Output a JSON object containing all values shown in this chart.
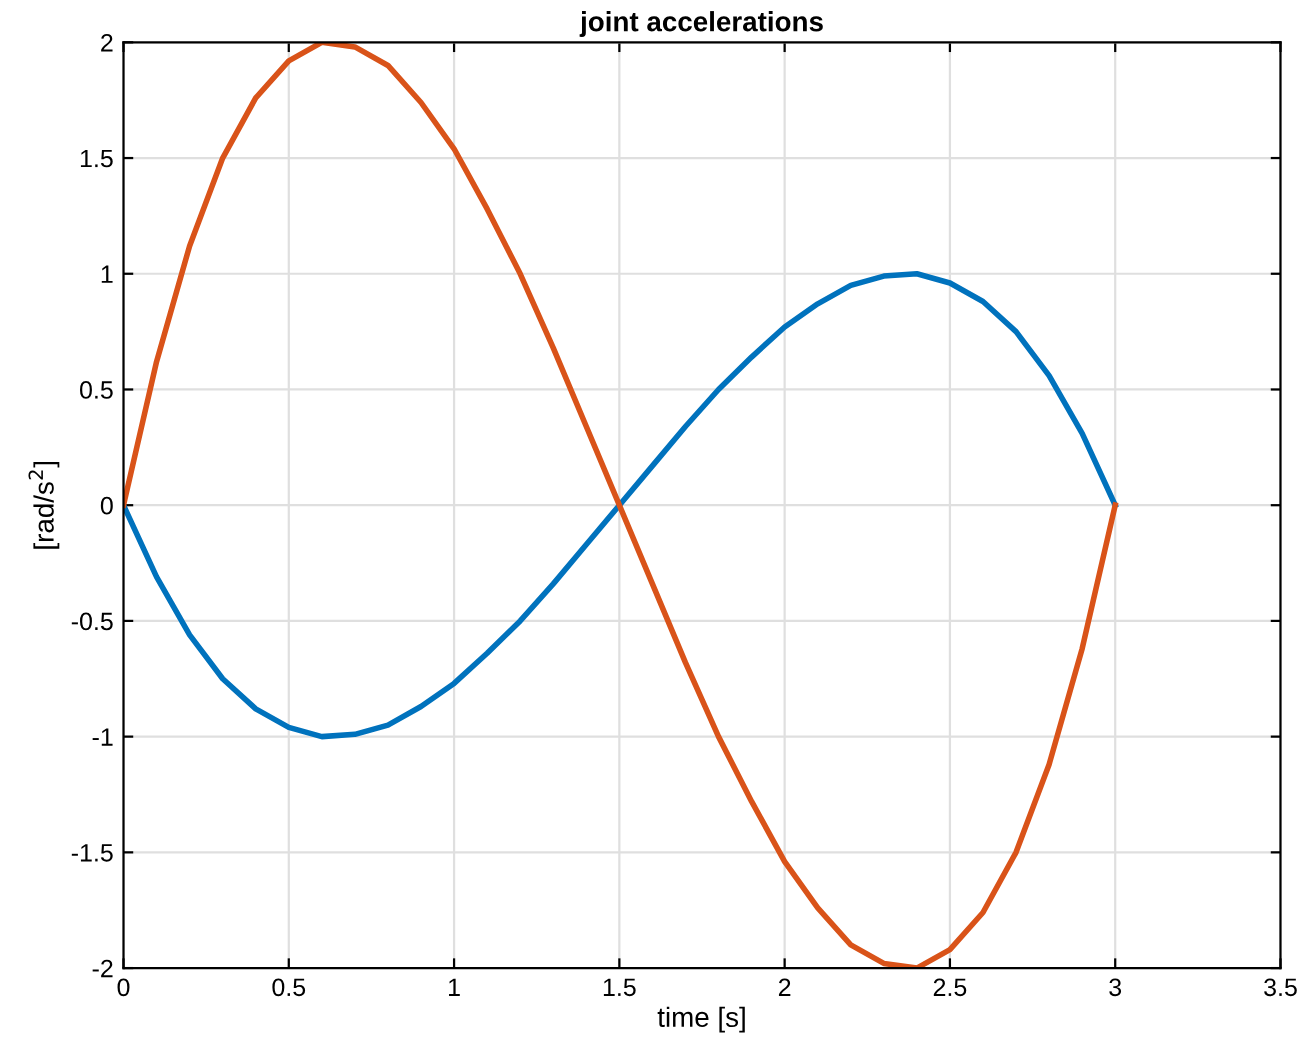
{
  "chart_data": {
    "type": "line",
    "title": "joint accelerations",
    "xlabel": "time [s]",
    "ylabel": "[rad/s$^{2}$]",
    "x": [
      0,
      0.1,
      0.2,
      0.3,
      0.4,
      0.5,
      0.6,
      0.7,
      0.8,
      0.9,
      1.0,
      1.1,
      1.2,
      1.3,
      1.4,
      1.5,
      1.6,
      1.7,
      1.8,
      1.9,
      2.0,
      2.1,
      2.2,
      2.3,
      2.4,
      2.5,
      2.6,
      2.7,
      2.8,
      2.9,
      3.0
    ],
    "series": [
      {
        "color": "#0072bd",
        "values": [
          0,
          -0.31,
          -0.56,
          -0.75,
          -0.88,
          -0.96,
          -1.0,
          -0.99,
          -0.95,
          -0.87,
          -0.77,
          -0.64,
          -0.5,
          -0.34,
          -0.17,
          0,
          0.17,
          0.34,
          0.5,
          0.64,
          0.77,
          0.87,
          0.95,
          0.99,
          1.0,
          0.96,
          0.88,
          0.75,
          0.56,
          0.31,
          0
        ]
      },
      {
        "color": "#d95319",
        "values": [
          0,
          0.62,
          1.12,
          1.5,
          1.76,
          1.92,
          2.0,
          1.98,
          1.9,
          1.74,
          1.54,
          1.28,
          1.0,
          0.68,
          0.34,
          0,
          -0.34,
          -0.68,
          -1.0,
          -1.28,
          -1.54,
          -1.74,
          -1.9,
          -1.98,
          -2.0,
          -1.92,
          -1.76,
          -1.5,
          -1.12,
          -0.62,
          0
        ]
      }
    ],
    "xlim": [
      0,
      3.5
    ],
    "ylim": [
      -2,
      2
    ],
    "xticks": [
      0,
      0.5,
      1,
      1.5,
      2,
      2.5,
      3,
      3.5
    ],
    "yticks": [
      -2,
      -1.5,
      -1,
      -0.5,
      0,
      0.5,
      1,
      1.5,
      2
    ],
    "grid": true,
    "marker": "none",
    "line_style": "solid"
  }
}
